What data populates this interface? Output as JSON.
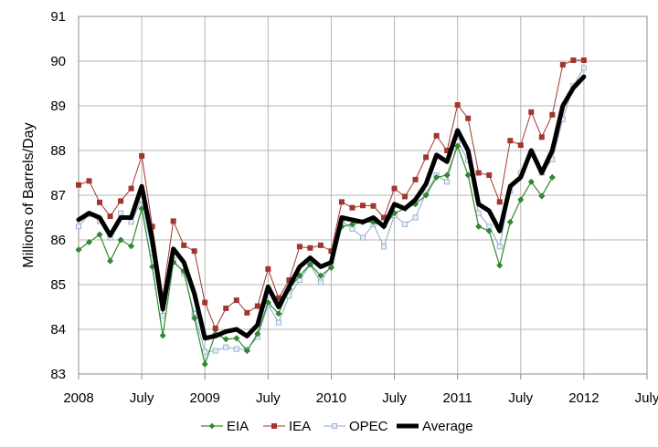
{
  "chart_data": {
    "type": "line",
    "title": "",
    "xlabel": "",
    "ylabel": "Millions of Barrels/Day",
    "ylim": [
      83,
      91
    ],
    "yticks": [
      "83",
      "84",
      "85",
      "86",
      "87",
      "88",
      "89",
      "90",
      "91"
    ],
    "xlim": [
      0,
      54
    ],
    "xticks": [
      {
        "pos": 0,
        "label": "2008"
      },
      {
        "pos": 6,
        "label": "July"
      },
      {
        "pos": 12,
        "label": "2009"
      },
      {
        "pos": 18,
        "label": "July"
      },
      {
        "pos": 24,
        "label": "2010"
      },
      {
        "pos": 30,
        "label": "July"
      },
      {
        "pos": 36,
        "label": "2011"
      },
      {
        "pos": 42,
        "label": "July"
      },
      {
        "pos": 48,
        "label": "2012"
      },
      {
        "pos": 54,
        "label": "July"
      }
    ],
    "grid": true,
    "legend": "bottom",
    "colors": {
      "EIA": "#2e8b2e",
      "IEA": "#a0362e",
      "OPEC": "#8aa8c8",
      "Average": "#000000"
    },
    "series": [
      {
        "name": "EIA",
        "values": [
          85.78,
          85.95,
          86.12,
          85.53,
          86.0,
          85.86,
          86.7,
          85.4,
          83.86,
          85.5,
          85.3,
          84.25,
          83.22,
          83.9,
          83.78,
          83.8,
          83.52,
          83.9,
          84.6,
          84.35,
          84.9,
          85.2,
          85.45,
          85.2,
          85.38,
          86.3,
          86.35,
          86.4,
          86.4,
          86.3,
          86.6,
          86.7,
          86.8,
          87.0,
          87.4,
          87.45,
          88.1,
          87.45,
          86.3,
          86.2,
          85.43,
          86.4,
          86.9,
          87.3,
          86.98,
          87.4
        ]
      },
      {
        "name": "IEA",
        "values": [
          87.23,
          87.32,
          86.84,
          86.53,
          86.87,
          87.15,
          87.88,
          86.3,
          84.75,
          86.42,
          85.88,
          85.75,
          84.6,
          84.02,
          84.47,
          84.65,
          84.37,
          84.52,
          85.35,
          84.7,
          85.1,
          85.85,
          85.82,
          85.88,
          85.75,
          86.85,
          86.72,
          86.77,
          86.76,
          86.5,
          87.15,
          86.97,
          87.35,
          87.85,
          88.33,
          88.0,
          89.02,
          88.72,
          87.5,
          87.45,
          86.85,
          88.22,
          88.12,
          88.86,
          88.3,
          88.8,
          89.92,
          90.02,
          90.02
        ]
      },
      {
        "name": "OPEC",
        "values": [
          86.3,
          86.57,
          86.42,
          86.05,
          86.6,
          86.4,
          86.9,
          85.7,
          84.3,
          85.55,
          85.25,
          84.35,
          83.5,
          83.52,
          83.6,
          83.56,
          83.55,
          83.83,
          84.55,
          84.15,
          84.75,
          85.1,
          85.45,
          85.05,
          85.45,
          86.42,
          86.25,
          86.05,
          86.35,
          85.85,
          86.55,
          86.35,
          86.5,
          87.05,
          87.45,
          87.3,
          88.2,
          87.78,
          86.6,
          86.3,
          85.85,
          87.1,
          87.5,
          87.95,
          87.5,
          87.8,
          88.7,
          89.45,
          89.85
        ]
      },
      {
        "name": "Average",
        "values": [
          86.45,
          86.6,
          86.5,
          86.1,
          86.5,
          86.5,
          87.2,
          86.0,
          84.45,
          85.8,
          85.5,
          84.8,
          83.8,
          83.85,
          83.95,
          84.0,
          83.85,
          84.1,
          84.95,
          84.5,
          84.95,
          85.4,
          85.6,
          85.4,
          85.5,
          86.5,
          86.45,
          86.4,
          86.5,
          86.3,
          86.8,
          86.7,
          86.9,
          87.25,
          87.9,
          87.75,
          88.45,
          88.0,
          86.8,
          86.65,
          86.2,
          87.2,
          87.4,
          88.0,
          87.5,
          88.0,
          89.0,
          89.4,
          89.65
        ]
      }
    ]
  }
}
